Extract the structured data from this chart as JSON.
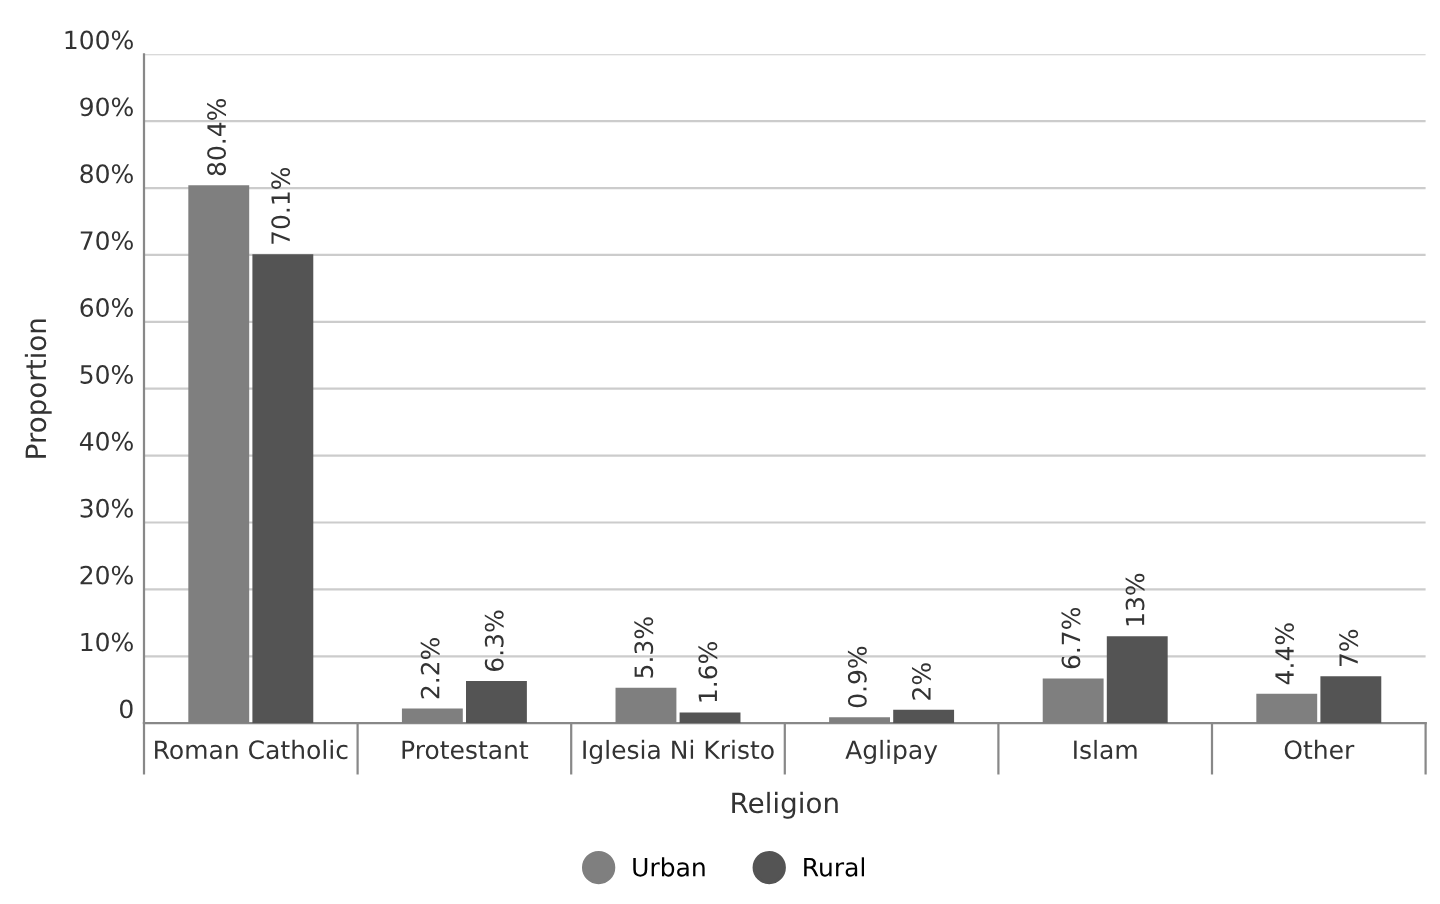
{
  "chart_data": {
    "type": "bar",
    "xlabel": "Religion",
    "ylabel": "Proportion",
    "categories": [
      "Roman Catholic",
      "Protestant",
      "Iglesia Ni Kristo",
      "Aglipay",
      "Islam",
      "Other"
    ],
    "series": [
      {
        "name": "Urban",
        "color": "#7f7f7f",
        "values": [
          80.4,
          2.2,
          5.3,
          0.9,
          6.7,
          4.4
        ],
        "value_labels": [
          "80.4%",
          "2.2%",
          "5.3%",
          "0.9%",
          "6.7%",
          "4.4%"
        ]
      },
      {
        "name": "Rural",
        "color": "#545454",
        "values": [
          70.1,
          6.3,
          1.6,
          2,
          13,
          7
        ],
        "value_labels": [
          "70.1%",
          "6.3%",
          "1.6%",
          "2%",
          "13%",
          "7%"
        ]
      }
    ],
    "ylim": [
      0,
      100
    ],
    "yticks": [
      0,
      {
        "value": 10,
        "label": "10%"
      },
      {
        "value": 20,
        "label": "20%"
      },
      {
        "value": 30,
        "label": "30%"
      },
      {
        "value": 40,
        "label": "40%"
      },
      {
        "value": 50,
        "label": "50%"
      },
      {
        "value": 60,
        "label": "60%"
      },
      {
        "value": 70,
        "label": "70%"
      },
      {
        "value": 80,
        "label": "80%"
      },
      {
        "value": 90,
        "label": "90%"
      },
      {
        "value": 100,
        "label": "100%"
      }
    ],
    "grid": "y",
    "legend": "bottom"
  }
}
